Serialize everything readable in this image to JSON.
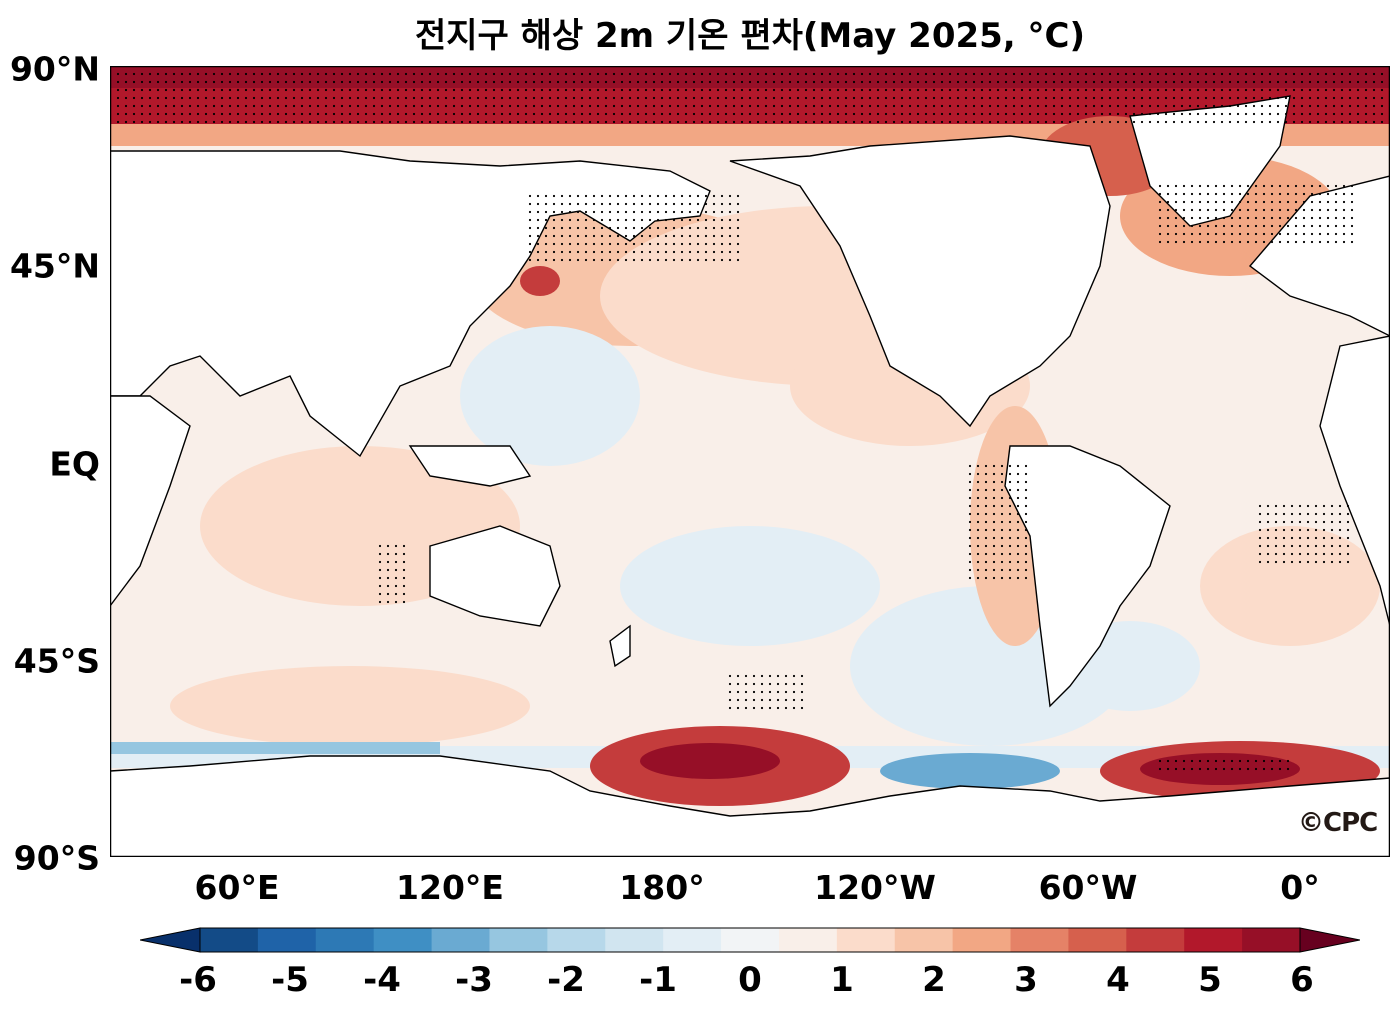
{
  "title": "전지구 해상 2m 기온 편차(May 2025, °C)",
  "map": {
    "projection": "plate-carree (Pacific-centred)",
    "lon_range": [
      10,
      370
    ],
    "lat_range": [
      -90,
      90
    ],
    "land_color": "#ffffff",
    "coastline_color": "#000000",
    "stippling": "black dots mark statistically significant anomalies"
  },
  "axes": {
    "lat_ticks": [
      {
        "label": "90°N",
        "lat": 90
      },
      {
        "label": "45°N",
        "lat": 45
      },
      {
        "label": "EQ",
        "lat": 0
      },
      {
        "label": "45°S",
        "lat": -45
      },
      {
        "label": "90°S",
        "lat": -90
      }
    ],
    "lon_ticks": [
      {
        "label": "60°E",
        "lon": 60
      },
      {
        "label": "120°E",
        "lon": 120
      },
      {
        "label": "180°",
        "lon": 180
      },
      {
        "label": "120°W",
        "lon": 240
      },
      {
        "label": "60°W",
        "lon": 300
      },
      {
        "label": "0°",
        "lon": 360
      }
    ]
  },
  "colorbar": {
    "min": -6,
    "max": 6,
    "step": 0.5,
    "extend": "both",
    "colormap": "RdBu_r",
    "tick_labels": [
      "-6",
      "-5",
      "-4",
      "-3",
      "-2",
      "-1",
      "0",
      "1",
      "2",
      "3",
      "4",
      "5",
      "6"
    ],
    "colors": [
      "#08306b",
      "#134b87",
      "#1f63a8",
      "#2d79b5",
      "#3f8fc4",
      "#6aaad2",
      "#96c6e0",
      "#b7d8ea",
      "#d1e5f0",
      "#e3eef5",
      "#f2f4f6",
      "#f9efe9",
      "#fbdccb",
      "#f7c4a8",
      "#f2a784",
      "#e58267",
      "#d6604d",
      "#c43c3c",
      "#b2182b",
      "#960f27",
      "#67001f"
    ]
  },
  "credit": "©CPC"
}
